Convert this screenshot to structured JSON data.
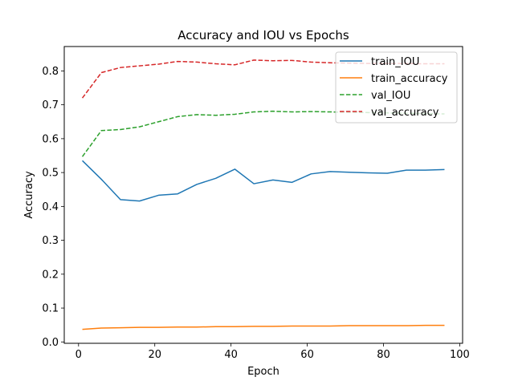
{
  "chart_data": {
    "type": "line",
    "title": "Accuracy and IOU vs Epochs",
    "xlabel": "Epoch",
    "ylabel": "Accuracy",
    "xlim": [
      -3.75,
      100.75
    ],
    "ylim": [
      -0.004,
      0.872
    ],
    "xticks": [
      0,
      20,
      40,
      60,
      80,
      100
    ],
    "yticks": [
      0.0,
      0.1,
      0.2,
      0.3,
      0.4,
      0.5,
      0.6,
      0.7,
      0.8
    ],
    "grid": false,
    "legend_position": "top-right",
    "x": [
      1,
      6,
      11,
      16,
      21,
      26,
      31,
      36,
      41,
      46,
      51,
      56,
      61,
      66,
      71,
      76,
      81,
      86,
      91,
      96
    ],
    "series": [
      {
        "name": "train_IOU",
        "color": "#1f77b4",
        "style": "solid",
        "values": [
          0.535,
          0.48,
          0.42,
          0.416,
          0.433,
          0.437,
          0.465,
          0.483,
          0.51,
          0.467,
          0.478,
          0.471,
          0.496,
          0.503,
          0.501,
          0.499,
          0.498,
          0.507,
          0.507,
          0.509
        ]
      },
      {
        "name": "train_accuracy",
        "color": "#ff7f0e",
        "style": "solid",
        "values": [
          0.037,
          0.041,
          0.042,
          0.043,
          0.043,
          0.044,
          0.044,
          0.045,
          0.045,
          0.046,
          0.046,
          0.047,
          0.047,
          0.047,
          0.048,
          0.048,
          0.048,
          0.048,
          0.049,
          0.049
        ]
      },
      {
        "name": "val_IOU",
        "color": "#2ca02c",
        "style": "dashed",
        "values": [
          0.547,
          0.624,
          0.627,
          0.635,
          0.65,
          0.665,
          0.671,
          0.669,
          0.672,
          0.679,
          0.681,
          0.679,
          0.68,
          0.679,
          0.678,
          0.677,
          0.676,
          0.675,
          0.674,
          0.673
        ]
      },
      {
        "name": "val_accuracy",
        "color": "#d62728",
        "style": "dashed",
        "values": [
          0.72,
          0.795,
          0.81,
          0.815,
          0.82,
          0.828,
          0.826,
          0.821,
          0.818,
          0.832,
          0.83,
          0.831,
          0.826,
          0.824,
          0.823,
          0.822,
          0.822,
          0.822,
          0.821,
          0.821
        ]
      }
    ]
  }
}
